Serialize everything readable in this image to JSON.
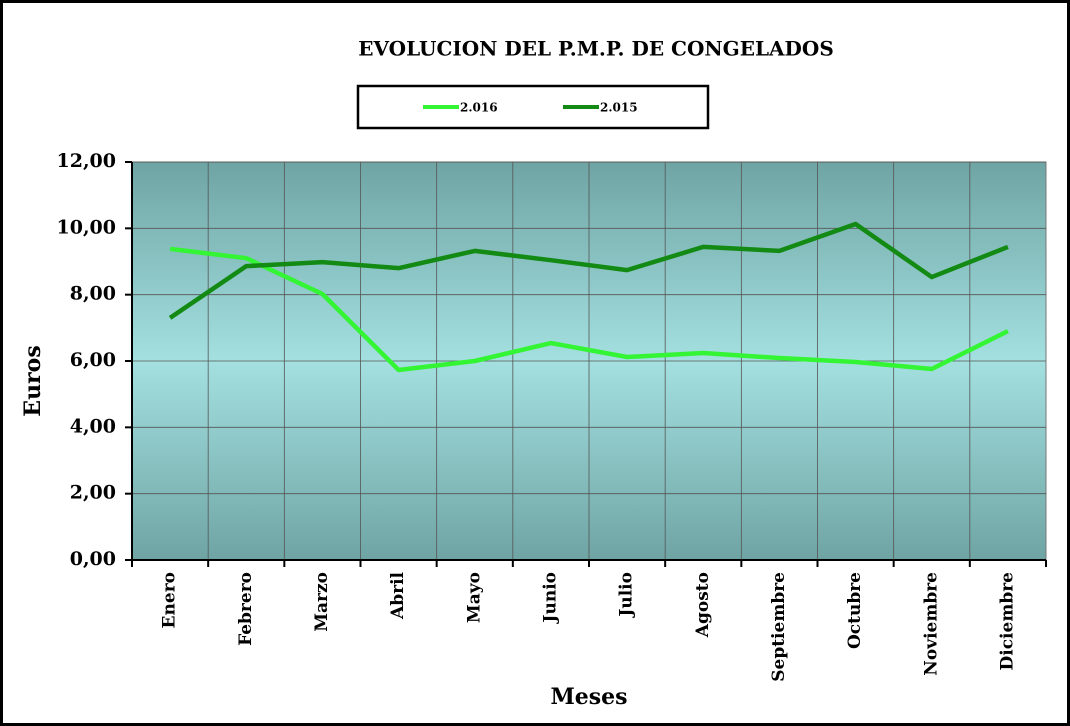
{
  "chart_data": {
    "type": "line",
    "title": "EVOLUCION DEL P.M.P. DE CONGELADOS",
    "x_label": "Meses",
    "y_label": "Euros",
    "categories": [
      "Enero",
      "Febrero",
      "Marzo",
      "Abril",
      "Mayo",
      "Junio",
      "Julio",
      "Agosto",
      "Septiembre",
      "Octubre",
      "Noviembre",
      "Diciembre"
    ],
    "series": [
      {
        "name": "2.016",
        "color": "#33f533",
        "values": [
          9.38,
          9.1,
          8.02,
          5.73,
          6.0,
          6.54,
          6.12,
          6.24,
          6.09,
          5.97,
          5.76,
          6.9
        ]
      },
      {
        "name": "2.015",
        "color": "#138a13",
        "values": [
          7.3,
          8.86,
          8.98,
          8.8,
          9.32,
          9.04,
          8.74,
          9.44,
          9.32,
          10.13,
          8.53,
          9.44
        ]
      }
    ],
    "ylim": [
      0,
      12
    ],
    "yticks": [
      {
        "value": 0,
        "label": "0,00"
      },
      {
        "value": 2,
        "label": "2,00"
      },
      {
        "value": 4,
        "label": "4,00"
      },
      {
        "value": 6,
        "label": "6,00"
      },
      {
        "value": 8,
        "label": "8,00"
      },
      {
        "value": 10,
        "label": "10,00"
      },
      {
        "value": 12,
        "label": "12,00"
      }
    ],
    "grid": true,
    "legend": "top"
  }
}
